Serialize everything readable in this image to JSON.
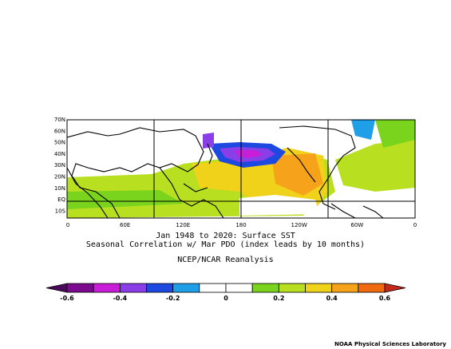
{
  "map": {
    "lat_labels": [
      "70N",
      "60N",
      "50N",
      "40N",
      "30N",
      "20N",
      "10N",
      "EQ",
      "10S"
    ],
    "lon_labels": [
      "0",
      "60E",
      "120E",
      "180",
      "120W",
      "60W",
      "0"
    ]
  },
  "captions": {
    "line1": "Jan 1948 to 2020: Surface SST",
    "line2": "Seasonal Correlation w/ Mar PDO (index leads by 10 months)",
    "line3": "NCEP/NCAR Reanalysis"
  },
  "colorbar": {
    "tick_labels": [
      "-0.6",
      "-0.4",
      "-0.2",
      "0",
      "0.2",
      "0.4",
      "0.6"
    ],
    "colors": [
      "#7b0a8e",
      "#c81ed8",
      "#8a3ee8",
      "#1e49e0",
      "#1e9fe8",
      "#ffffff",
      "#ffffff",
      "#7ad31c",
      "#b8e020",
      "#f0d21a",
      "#f6a21a",
      "#f06a10"
    ],
    "end_low": "#4a0a5a",
    "end_high": "#c4281a"
  },
  "footer": "NOAA Physical Sciences Laboratory",
  "colors": {
    "land_outline": "#000000",
    "ocean_neutral": "#ffffff"
  }
}
